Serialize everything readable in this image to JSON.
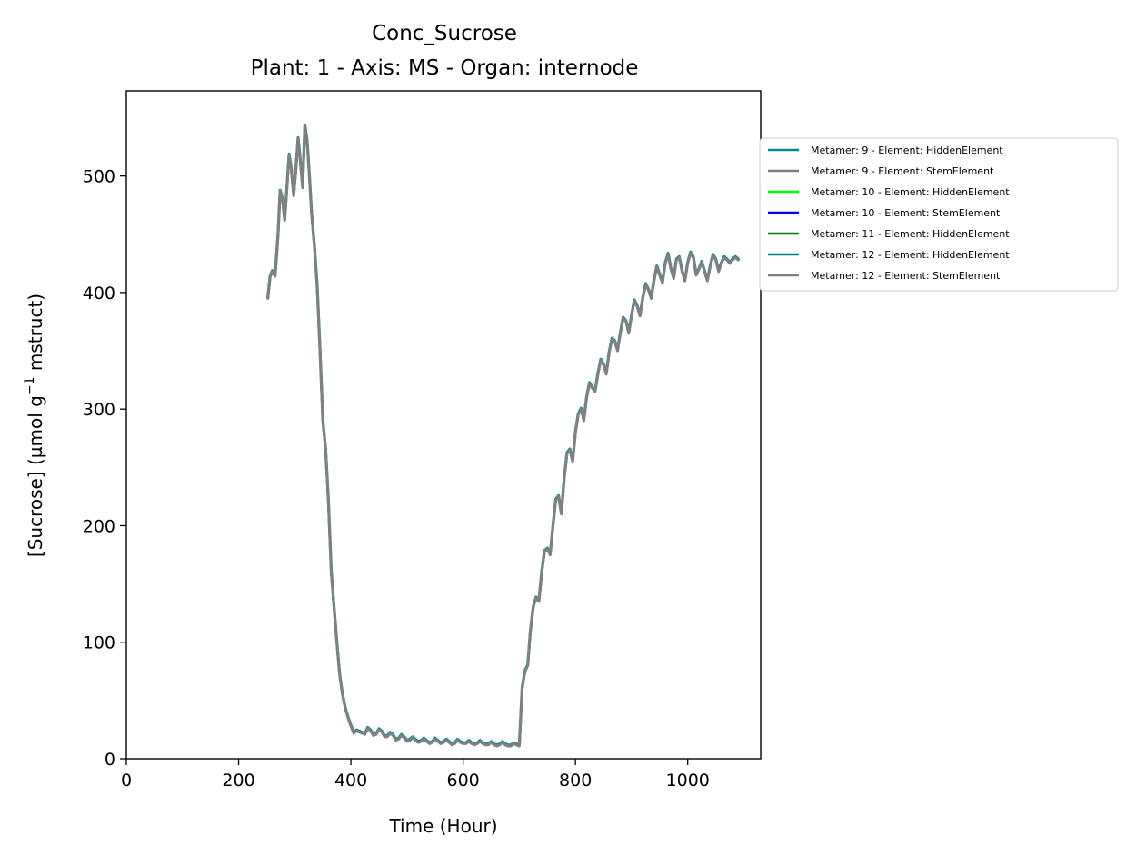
{
  "chart_data": {
    "type": "line",
    "title": "Conc_Sucrose",
    "subtitle": "Plant: 1 - Axis: MS - Organ: internode",
    "xlabel": "Time (Hour)",
    "ylabel_parts": [
      "[Sucrose] (µmol g",
      "−1",
      " mstruct)"
    ],
    "xlim": [
      0,
      1130
    ],
    "ylim": [
      0,
      573
    ],
    "xticks": [
      0,
      200,
      400,
      600,
      800,
      1000
    ],
    "yticks": [
      0,
      100,
      200,
      300,
      400,
      500
    ],
    "legend_position": "right, outside the plot",
    "series": [
      {
        "name": "Metamer: 9 - Element: HiddenElement",
        "color": "#008b8b"
      },
      {
        "name": "Metamer: 9 - Element: StemElement",
        "color": "#808080"
      },
      {
        "name": "Metamer: 10 - Element: HiddenElement",
        "color": "#00ff00"
      },
      {
        "name": "Metamer: 10 - Element: StemElement",
        "color": "#0000ff"
      },
      {
        "name": "Metamer: 11 - Element: HiddenElement",
        "color": "#008000"
      },
      {
        "name": "Metamer: 12 - Element: HiddenElement",
        "color": "#008080"
      },
      {
        "name": "Metamer: 12 - Element: StemElement",
        "color": "#808080"
      }
    ],
    "plotted_series": [
      0,
      1,
      6
    ],
    "x": [
      252,
      256,
      260,
      265,
      270,
      274,
      278,
      282,
      286,
      290,
      294,
      298,
      302,
      306,
      310,
      314,
      318,
      322,
      326,
      330,
      335,
      340,
      345,
      350,
      355,
      360,
      365,
      370,
      375,
      380,
      385,
      390,
      395,
      400,
      405,
      410,
      415,
      420,
      425,
      430,
      435,
      440,
      445,
      450,
      455,
      460,
      465,
      470,
      475,
      480,
      485,
      490,
      495,
      500,
      505,
      510,
      515,
      520,
      525,
      530,
      535,
      540,
      545,
      550,
      555,
      560,
      565,
      570,
      575,
      580,
      585,
      590,
      595,
      600,
      605,
      610,
      615,
      620,
      625,
      630,
      635,
      640,
      645,
      650,
      655,
      660,
      665,
      670,
      675,
      680,
      685,
      690,
      695,
      700,
      705,
      710,
      715,
      720,
      725,
      730,
      735,
      740,
      745,
      750,
      755,
      760,
      765,
      770,
      775,
      780,
      785,
      790,
      795,
      800,
      805,
      810,
      815,
      820,
      825,
      830,
      835,
      840,
      845,
      850,
      855,
      860,
      865,
      870,
      875,
      880,
      885,
      890,
      895,
      900,
      905,
      910,
      915,
      920,
      925,
      930,
      935,
      940,
      945,
      950,
      955,
      960,
      965,
      970,
      975,
      980,
      985,
      990,
      995,
      1000,
      1005,
      1010,
      1015,
      1020,
      1025,
      1030,
      1035,
      1040,
      1045,
      1050,
      1055,
      1060,
      1065,
      1070,
      1075,
      1080,
      1085,
      1090
    ],
    "y": [
      395,
      413,
      418,
      414,
      448,
      487,
      480,
      462,
      490,
      518,
      505,
      483,
      505,
      532,
      512,
      490,
      543,
      530,
      500,
      468,
      440,
      405,
      350,
      290,
      265,
      220,
      160,
      130,
      100,
      72,
      55,
      43,
      35,
      28,
      22,
      24,
      23,
      22,
      21,
      26,
      24,
      20,
      21,
      25,
      23,
      19,
      19,
      22,
      20,
      16,
      17,
      20,
      18,
      15,
      16,
      18,
      16,
      14,
      15,
      17,
      15,
      13,
      14,
      17,
      15,
      13,
      14,
      16,
      14,
      12,
      13,
      16,
      14,
      13,
      13,
      15,
      13,
      12,
      13,
      15,
      13,
      12,
      12,
      14,
      12,
      11,
      12,
      14,
      12,
      11,
      11,
      13,
      12,
      11,
      60,
      75,
      80,
      110,
      130,
      138,
      135,
      160,
      178,
      180,
      175,
      200,
      222,
      225,
      210,
      240,
      262,
      265,
      255,
      280,
      295,
      300,
      290,
      310,
      322,
      318,
      315,
      330,
      342,
      338,
      330,
      348,
      360,
      358,
      350,
      365,
      378,
      375,
      365,
      380,
      393,
      388,
      380,
      395,
      407,
      402,
      395,
      410,
      422,
      415,
      408,
      425,
      433,
      420,
      412,
      428,
      430,
      418,
      410,
      425,
      434,
      430,
      415,
      420,
      426,
      418,
      410,
      422,
      432,
      428,
      418,
      425,
      430,
      428,
      425,
      428,
      430,
      428
    ]
  }
}
